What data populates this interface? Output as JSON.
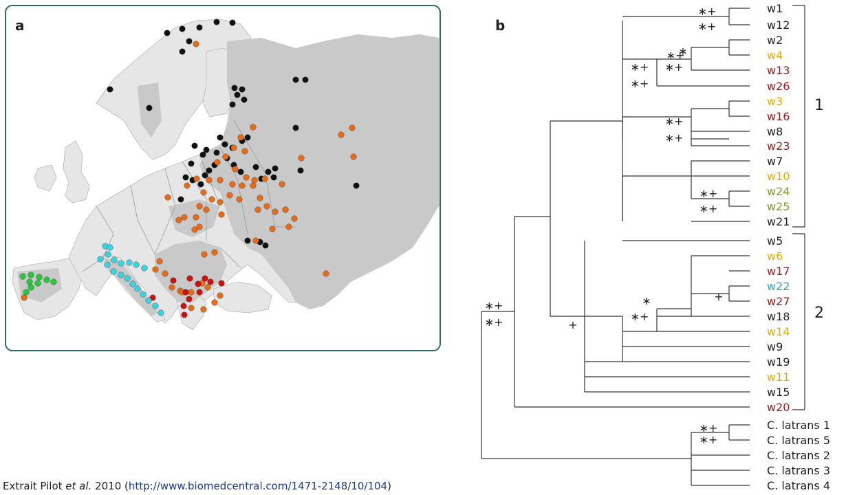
{
  "panel_a": {
    "label": "a",
    "legend_colors": {
      "black": "#111111",
      "orange": "#e86c17",
      "red": "#cc1111",
      "cyan": "#3cd4e0",
      "green": "#27c93a"
    },
    "map_colors": {
      "europe_land": "#e6e6e6",
      "wolf_range": "#c9c9c9",
      "frame": "#2f6a5e"
    }
  },
  "panel_b": {
    "label": "b",
    "leaves": [
      {
        "label": "w1",
        "color": "#222222"
      },
      {
        "label": "w12",
        "color": "#222222"
      },
      {
        "label": "w2",
        "color": "#222222"
      },
      {
        "label": "w4",
        "color": "#e8a800"
      },
      {
        "label": "w13",
        "color": "#a01818"
      },
      {
        "label": "w26",
        "color": "#a01818"
      },
      {
        "label": "w3",
        "color": "#e8a800"
      },
      {
        "label": "w16",
        "color": "#a01818"
      },
      {
        "label": "w8",
        "color": "#222222"
      },
      {
        "label": "w23",
        "color": "#a01818"
      },
      {
        "label": "w7",
        "color": "#222222"
      },
      {
        "label": "w10",
        "color": "#e8a800"
      },
      {
        "label": "w24",
        "color": "#7f9a1f"
      },
      {
        "label": "w25",
        "color": "#7f9a1f"
      },
      {
        "label": "w21",
        "color": "#222222"
      },
      {
        "label": "w5",
        "color": "#222222"
      },
      {
        "label": "w6",
        "color": "#e8a800"
      },
      {
        "label": "w17",
        "color": "#a01818"
      },
      {
        "label": "w22",
        "color": "#2aa3b3"
      },
      {
        "label": "w27",
        "color": "#a01818"
      },
      {
        "label": "w18",
        "color": "#222222"
      },
      {
        "label": "w14",
        "color": "#e8a800"
      },
      {
        "label": "w9",
        "color": "#222222"
      },
      {
        "label": "w19",
        "color": "#222222"
      },
      {
        "label": "w11",
        "color": "#e8a800"
      },
      {
        "label": "w15",
        "color": "#222222"
      },
      {
        "label": "w20",
        "color": "#a01818"
      },
      {
        "label": "C. latrans 1",
        "color": "#222222"
      },
      {
        "label": "C. latrans 5",
        "color": "#222222"
      },
      {
        "label": "C. latrans 2",
        "color": "#222222"
      },
      {
        "label": "C. latrans 3",
        "color": "#222222"
      },
      {
        "label": "C. latrans 4",
        "color": "#222222"
      }
    ],
    "clades": [
      {
        "label": "1"
      },
      {
        "label": "2"
      }
    ],
    "support_marks": [
      "∗+",
      "∗",
      "+"
    ]
  },
  "caption": {
    "prefix": "Extrait Pilot ",
    "etal": "et al.",
    "year": " 2010 (",
    "url": "http://www.biomedcentral.com/1471-2148/10/104",
    "suffix": ")"
  }
}
